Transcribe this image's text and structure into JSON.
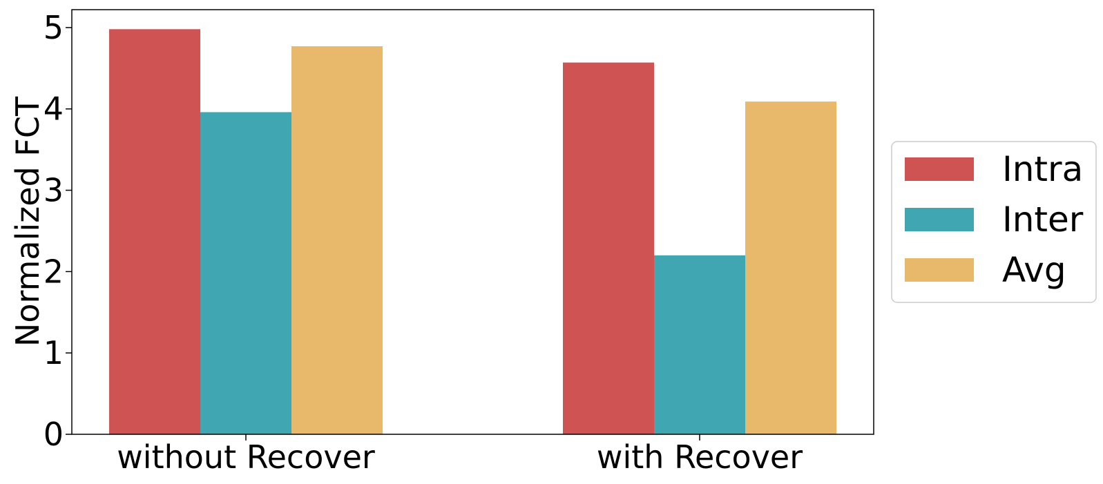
{
  "chart_data": {
    "type": "bar",
    "title": "",
    "xlabel": "",
    "ylabel": "Normalized FCT",
    "categories": [
      "without Recover",
      "with Recover"
    ],
    "series": [
      {
        "name": "Intra",
        "color": "#d05353",
        "values": [
          4.98,
          4.57
        ]
      },
      {
        "name": "Inter",
        "color": "#3fa6b2",
        "values": [
          3.96,
          2.2
        ]
      },
      {
        "name": "Avg",
        "color": "#e8b86b",
        "values": [
          4.77,
          4.09
        ]
      }
    ],
    "ylim": [
      0,
      5.22
    ],
    "yticks": [
      "0",
      "1",
      "2",
      "3",
      "4",
      "5"
    ],
    "grid": false,
    "legend_position": "right"
  }
}
